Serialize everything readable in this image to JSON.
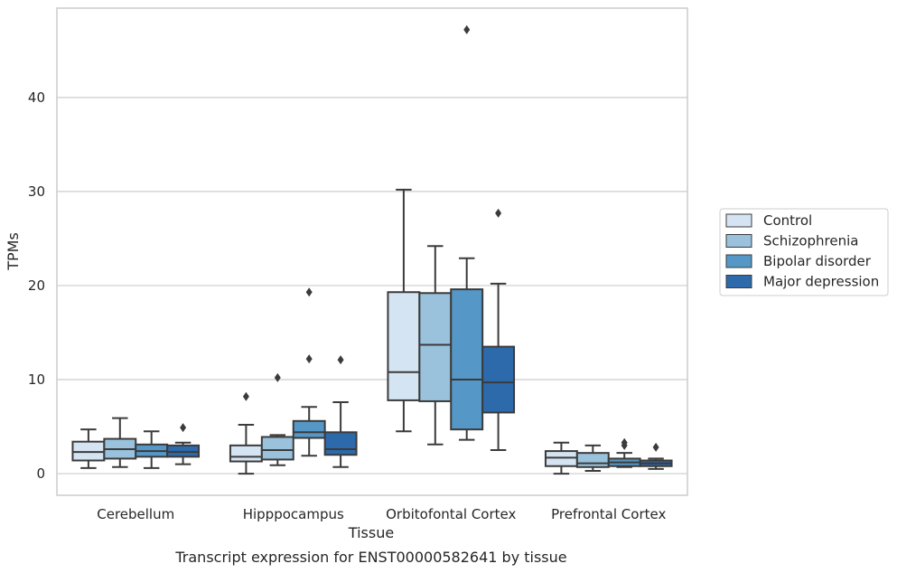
{
  "chart_data": {
    "type": "box",
    "caption": "Transcript expression for ENST00000582641 by tissue",
    "xlabel": "Tissue",
    "ylabel": "TPMs",
    "ylim": [
      -2.3,
      49.5
    ],
    "yticks": [
      0,
      10,
      20,
      30,
      40
    ],
    "grid": "horizontal",
    "legend_position": "right",
    "categories": [
      "Cerebellum",
      "Hipppocampus",
      "Orbitofontal Cortex",
      "Prefrontal Cortex"
    ],
    "series": [
      {
        "name": "Control",
        "color": "#d5e4f2",
        "boxes": [
          {
            "whisker_low": 0.6,
            "q1": 1.4,
            "median": 2.3,
            "q3": 3.4,
            "whisker_high": 4.7,
            "outliers": []
          },
          {
            "whisker_low": 0.0,
            "q1": 1.3,
            "median": 1.8,
            "q3": 3.0,
            "whisker_high": 5.2,
            "outliers": [
              8.2
            ]
          },
          {
            "whisker_low": 4.5,
            "q1": 7.8,
            "median": 10.8,
            "q3": 19.3,
            "whisker_high": 30.2,
            "outliers": []
          },
          {
            "whisker_low": 0.0,
            "q1": 0.8,
            "median": 1.7,
            "q3": 2.4,
            "whisker_high": 3.3,
            "outliers": []
          }
        ]
      },
      {
        "name": "Schizophrenia",
        "color": "#9ac2dc",
        "boxes": [
          {
            "whisker_low": 0.7,
            "q1": 1.6,
            "median": 2.6,
            "q3": 3.7,
            "whisker_high": 5.9,
            "outliers": []
          },
          {
            "whisker_low": 0.9,
            "q1": 1.5,
            "median": 2.5,
            "q3": 3.9,
            "whisker_high": 4.1,
            "outliers": [
              10.2
            ]
          },
          {
            "whisker_low": 3.1,
            "q1": 7.7,
            "median": 13.7,
            "q3": 19.2,
            "whisker_high": 24.2,
            "outliers": []
          },
          {
            "whisker_low": 0.3,
            "q1": 0.7,
            "median": 1.1,
            "q3": 2.2,
            "whisker_high": 3.0,
            "outliers": []
          }
        ]
      },
      {
        "name": "Bipolar disorder",
        "color": "#5597c6",
        "boxes": [
          {
            "whisker_low": 0.6,
            "q1": 1.8,
            "median": 2.4,
            "q3": 3.1,
            "whisker_high": 4.5,
            "outliers": []
          },
          {
            "whisker_low": 1.9,
            "q1": 3.8,
            "median": 4.4,
            "q3": 5.6,
            "whisker_high": 7.1,
            "outliers": [
              12.2,
              19.3
            ]
          },
          {
            "whisker_low": 3.6,
            "q1": 4.7,
            "median": 10.0,
            "q3": 19.6,
            "whisker_high": 22.9,
            "outliers": [
              47.2
            ]
          },
          {
            "whisker_low": 0.7,
            "q1": 0.8,
            "median": 1.2,
            "q3": 1.6,
            "whisker_high": 2.2,
            "outliers": [
              3.0,
              3.3
            ]
          }
        ]
      },
      {
        "name": "Major depression",
        "color": "#2c6aab",
        "boxes": [
          {
            "whisker_low": 1.0,
            "q1": 1.8,
            "median": 2.3,
            "q3": 3.0,
            "whisker_high": 3.3,
            "outliers": [
              4.9
            ]
          },
          {
            "whisker_low": 0.7,
            "q1": 2.0,
            "median": 2.6,
            "q3": 4.4,
            "whisker_high": 7.6,
            "outliers": [
              12.1
            ]
          },
          {
            "whisker_low": 2.5,
            "q1": 6.5,
            "median": 9.7,
            "q3": 13.5,
            "whisker_high": 20.2,
            "outliers": [
              27.7
            ]
          },
          {
            "whisker_low": 0.5,
            "q1": 0.8,
            "median": 1.1,
            "q3": 1.4,
            "whisker_high": 1.6,
            "outliers": [
              2.8
            ]
          }
        ]
      }
    ]
  }
}
